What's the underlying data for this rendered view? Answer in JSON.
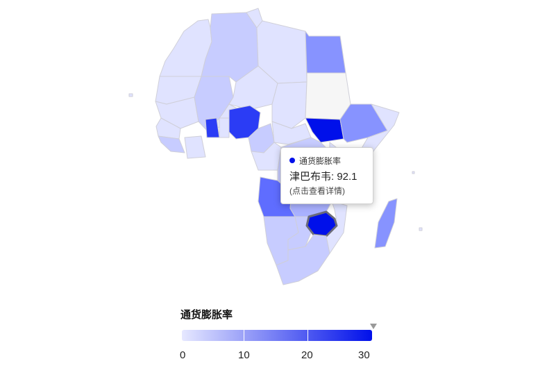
{
  "legend": {
    "title": "通货膨胀率",
    "min": 0,
    "max": 30,
    "ticks": [
      "0",
      "10",
      "20",
      "30"
    ],
    "color_low": "#e6e8ff",
    "color_high": "#0010ea",
    "handle_color": "#999999"
  },
  "tooltip": {
    "series": "通货膨胀率",
    "value_text": "津巴布韦: 92.1",
    "hint": "(点击查看详情)",
    "dot_color": "#0010ea"
  },
  "chart_data": {
    "type": "map",
    "region": "Africa",
    "selected": {
      "name": "津巴布韦",
      "value": 92.1
    },
    "colors": {
      "very_light": "#e0e3ff",
      "light": "#c7ccff",
      "mid": "#a9b1ff",
      "medium": "#8793ff",
      "strong": "#5f6dff",
      "dark": "#2b3cf5",
      "darkest": "#0010ea",
      "no_data": "#f6f6f6"
    }
  }
}
